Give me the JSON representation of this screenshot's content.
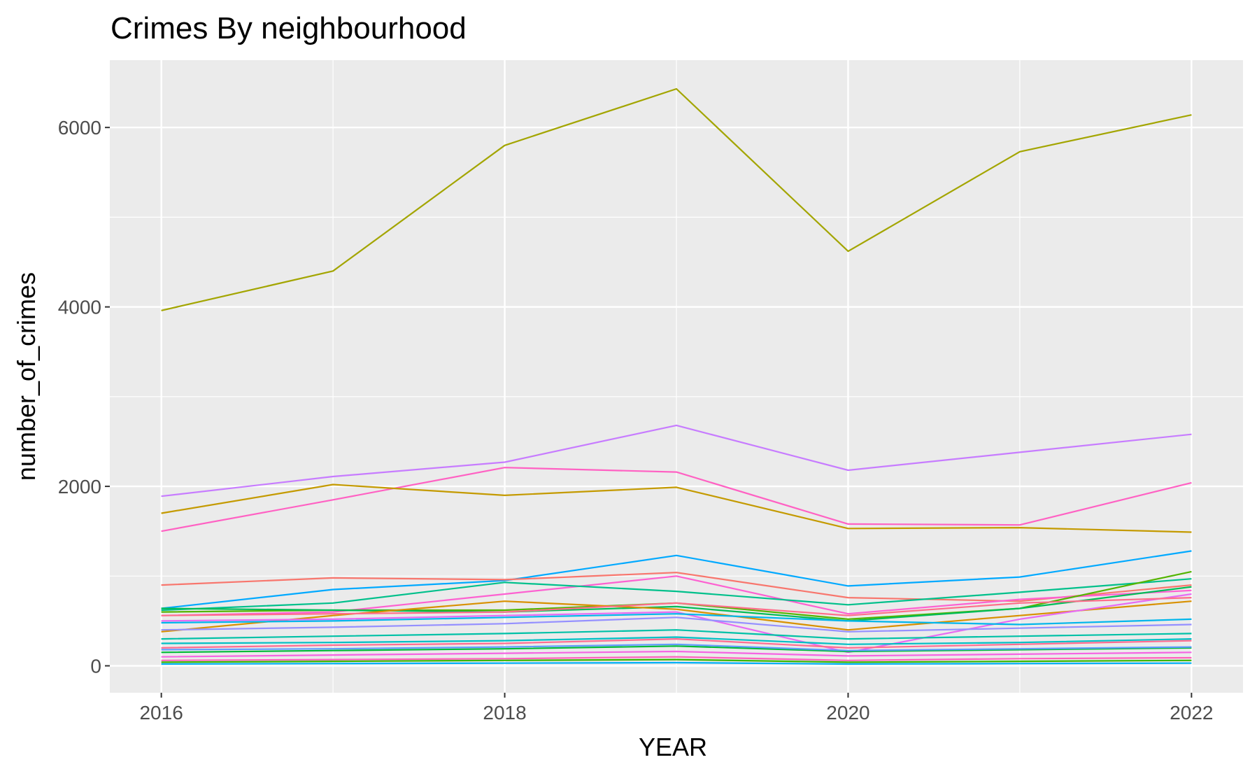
{
  "chart_data": {
    "type": "line",
    "title": "Crimes By neighbourhood",
    "xlabel": "YEAR",
    "ylabel": "number_of_crimes",
    "x": [
      2016,
      2017,
      2018,
      2019,
      2020,
      2021,
      2022
    ],
    "x_ticks": [
      "2016",
      "2018",
      "2020",
      "2022"
    ],
    "y_ticks": [
      "0",
      "2000",
      "4000",
      "6000"
    ],
    "xlim": [
      2015.7,
      2022.3
    ],
    "ylim": [
      -300,
      6750
    ],
    "grid": true,
    "legend": "none",
    "panel_color": "#ebebeb",
    "series": [
      {
        "color": "#a3a500",
        "values": [
          3960,
          4400,
          5800,
          6430,
          4620,
          5730,
          6140
        ]
      },
      {
        "color": "#c77cff",
        "values": [
          1890,
          2110,
          2270,
          2680,
          2180,
          2380,
          2580
        ]
      },
      {
        "color": "#ff61c3",
        "values": [
          1500,
          1850,
          2210,
          2160,
          1580,
          1570,
          2040
        ]
      },
      {
        "color": "#c49a00",
        "values": [
          1700,
          2020,
          1900,
          1990,
          1530,
          1540,
          1490
        ]
      },
      {
        "color": "#00a9ff",
        "values": [
          640,
          850,
          950,
          1230,
          890,
          990,
          1280
        ]
      },
      {
        "color": "#f8766d",
        "values": [
          900,
          980,
          960,
          1040,
          760,
          720,
          900
        ]
      },
      {
        "color": "#fd61d1",
        "values": [
          560,
          600,
          800,
          1000,
          580,
          740,
          840
        ]
      },
      {
        "color": "#00c08b",
        "values": [
          620,
          700,
          930,
          830,
          680,
          820,
          970
        ]
      },
      {
        "color": "#53b400",
        "values": [
          600,
          620,
          620,
          700,
          520,
          640,
          1050
        ]
      },
      {
        "color": "#00bc56",
        "values": [
          640,
          620,
          600,
          660,
          500,
          640,
          880
        ]
      },
      {
        "color": "#d89000",
        "values": [
          380,
          560,
          720,
          630,
          400,
          560,
          720
        ]
      },
      {
        "color": "#e76bf3",
        "values": [
          500,
          520,
          560,
          600,
          150,
          520,
          800
        ]
      },
      {
        "color": "#00b6eb",
        "values": [
          480,
          500,
          540,
          580,
          500,
          460,
          520
        ]
      },
      {
        "color": "#fe6e8a",
        "values": [
          560,
          580,
          600,
          700,
          560,
          700,
          760
        ]
      },
      {
        "color": "#9590ff",
        "values": [
          400,
          430,
          470,
          540,
          380,
          420,
          460
        ]
      },
      {
        "color": "#00c1a7",
        "values": [
          300,
          330,
          360,
          400,
          300,
          330,
          360
        ]
      },
      {
        "color": "#ff6c91",
        "values": [
          200,
          230,
          250,
          300,
          200,
          240,
          280
        ]
      },
      {
        "color": "#00bfc4",
        "values": [
          250,
          260,
          280,
          320,
          240,
          260,
          300
        ]
      },
      {
        "color": "#00ba38",
        "values": [
          150,
          170,
          190,
          220,
          160,
          180,
          200
        ]
      },
      {
        "color": "#619cff",
        "values": [
          180,
          190,
          210,
          240,
          170,
          190,
          210
        ]
      },
      {
        "color": "#f564e3",
        "values": [
          100,
          120,
          140,
          160,
          110,
          130,
          150
        ]
      },
      {
        "color": "#ff62bc",
        "values": [
          60,
          70,
          80,
          100,
          60,
          80,
          90
        ]
      },
      {
        "color": "#39b600",
        "values": [
          40,
          50,
          60,
          70,
          40,
          50,
          60
        ]
      },
      {
        "color": "#00b0f6",
        "values": [
          20,
          25,
          30,
          35,
          20,
          25,
          30
        ]
      }
    ]
  }
}
